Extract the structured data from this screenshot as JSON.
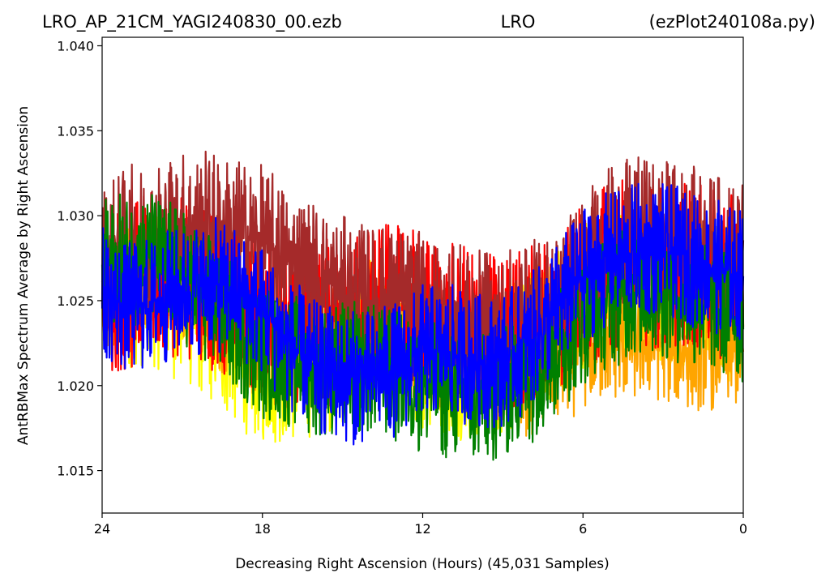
{
  "chart_data": {
    "type": "line",
    "title_left": "LRO_AP_21CM_YAGI240830_00.ezb",
    "title_center": "LRO",
    "title_right": "(ezPlot240108a.py)",
    "xlabel": "Decreasing Right Ascension (Hours) (45,031 Samples)",
    "ylabel": "AntRBMax Spectrum Average by Right Ascension",
    "x_ticks": [
      "24",
      "18",
      "12",
      "6",
      "0"
    ],
    "x_tick_values": [
      24,
      18,
      12,
      6,
      0
    ],
    "y_ticks": [
      "1.015",
      "1.020",
      "1.025",
      "1.030",
      "1.035",
      "1.040"
    ],
    "y_tick_values": [
      1.015,
      1.02,
      1.025,
      1.03,
      1.035,
      1.04
    ],
    "xlim": [
      24,
      0
    ],
    "ylim": [
      1.0125,
      1.0405
    ],
    "grid": false,
    "series": [
      {
        "color": "#ffff00",
        "x": [
          24,
          23,
          22,
          21,
          20,
          19,
          18,
          17,
          16,
          15,
          14,
          13,
          12,
          11,
          10,
          9,
          8,
          7,
          6,
          5,
          4,
          3,
          2,
          1,
          0
        ],
        "center": [
          1.0245,
          1.0255,
          1.0255,
          1.0245,
          1.0235,
          1.022,
          1.021,
          1.021,
          1.0215,
          1.022,
          1.023,
          1.0225,
          1.022,
          1.0215,
          1.021,
          1.0215,
          1.0225,
          1.024,
          1.0255,
          1.026,
          1.026,
          1.0255,
          1.0255,
          1.025,
          1.0245
        ],
        "spread": 0.0045
      },
      {
        "color": "#ffa500",
        "x": [
          24,
          23,
          22,
          21,
          20,
          19,
          18,
          17,
          16,
          15,
          14,
          13,
          12,
          11,
          10,
          9,
          8,
          7,
          6,
          5,
          4,
          3,
          2,
          1,
          0
        ],
        "center": [
          1.0255,
          1.026,
          1.0265,
          1.026,
          1.025,
          1.0235,
          1.0225,
          1.022,
          1.022,
          1.0225,
          1.023,
          1.023,
          1.0225,
          1.022,
          1.021,
          1.0205,
          1.0205,
          1.021,
          1.022,
          1.0225,
          1.0225,
          1.0225,
          1.022,
          1.022,
          1.022
        ],
        "spread": 0.0035
      },
      {
        "color": "#ff0000",
        "x": [
          24,
          23,
          22,
          21,
          20,
          19,
          18,
          17,
          16,
          15,
          14,
          13,
          12,
          11,
          10,
          9,
          8,
          7,
          6,
          5,
          4,
          3,
          2,
          1,
          0
        ],
        "center": [
          1.0255,
          1.026,
          1.0265,
          1.0265,
          1.026,
          1.025,
          1.024,
          1.0235,
          1.0235,
          1.024,
          1.0245,
          1.0245,
          1.024,
          1.0235,
          1.023,
          1.023,
          1.0235,
          1.0245,
          1.026,
          1.027,
          1.0275,
          1.027,
          1.027,
          1.0265,
          1.026
        ],
        "spread": 0.005
      },
      {
        "color": "#a52a2a",
        "x": [
          24,
          23,
          22,
          21,
          20,
          19,
          18,
          17,
          16,
          15,
          14,
          13,
          12,
          11,
          10,
          9,
          8,
          7,
          6,
          5,
          4,
          3,
          2,
          1,
          0
        ],
        "center": [
          1.0275,
          1.0285,
          1.029,
          1.0295,
          1.0295,
          1.029,
          1.0285,
          1.0275,
          1.0265,
          1.0255,
          1.025,
          1.025,
          1.0245,
          1.024,
          1.0235,
          1.0235,
          1.024,
          1.025,
          1.027,
          1.0285,
          1.029,
          1.029,
          1.0285,
          1.028,
          1.0275
        ],
        "spread": 0.0045
      },
      {
        "color": "#008000",
        "x": [
          24,
          23,
          22,
          21,
          20,
          19,
          18,
          17,
          16,
          15,
          14,
          13,
          12,
          11,
          10,
          9,
          8,
          7,
          6,
          5,
          4,
          3,
          2,
          1,
          0
        ],
        "center": [
          1.027,
          1.0275,
          1.0275,
          1.0265,
          1.025,
          1.0235,
          1.022,
          1.0215,
          1.021,
          1.021,
          1.021,
          1.0205,
          1.02,
          1.0195,
          1.019,
          1.0195,
          1.0205,
          1.022,
          1.024,
          1.025,
          1.0255,
          1.0255,
          1.025,
          1.0245,
          1.024
        ],
        "spread": 0.004
      },
      {
        "color": "#0000ff",
        "x": [
          24,
          23,
          22,
          21,
          20,
          19,
          18,
          17,
          16,
          15,
          14,
          13,
          12,
          11,
          10,
          9,
          8,
          7,
          6,
          5,
          4,
          3,
          2,
          1,
          0
        ],
        "center": [
          1.0255,
          1.0245,
          1.025,
          1.0255,
          1.026,
          1.0255,
          1.0245,
          1.0225,
          1.021,
          1.0205,
          1.0205,
          1.021,
          1.022,
          1.022,
          1.0215,
          1.0215,
          1.0225,
          1.0245,
          1.0265,
          1.0275,
          1.028,
          1.028,
          1.0275,
          1.027,
          1.0265
        ],
        "spread": 0.004
      }
    ]
  }
}
